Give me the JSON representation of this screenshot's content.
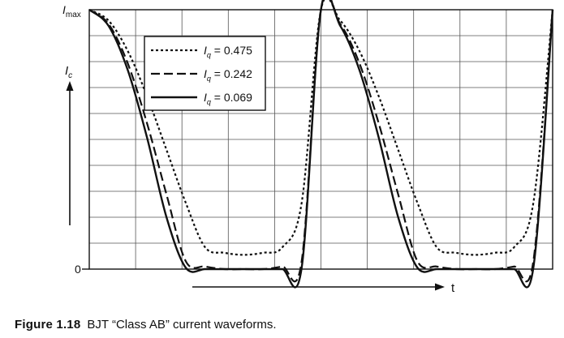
{
  "chart_data": {
    "type": "line",
    "title": "",
    "x": [
      0,
      0.0833,
      0.1667,
      0.25,
      0.3333,
      0.4167,
      0.5,
      0.5833,
      0.6667,
      0.75,
      0.8333,
      0.9167,
      1,
      1.0833,
      1.1667,
      1.25,
      1.3333,
      1.4167,
      1.5,
      1.5833,
      1.6667,
      1.75,
      1.8333,
      1.9167,
      2
    ],
    "series": [
      {
        "name": "0.475",
        "style": "dotted",
        "values": [
          1,
          0.958,
          0.84,
          0.665,
          0.46,
          0.255,
          0.084,
          0.063,
          0.055,
          0.063,
          0.084,
          0.255,
          1,
          0.958,
          0.84,
          0.665,
          0.46,
          0.255,
          0.084,
          0.063,
          0.055,
          0.063,
          0.084,
          0.255,
          1
        ]
      },
      {
        "name": "0.242",
        "style": "dashed",
        "values": [
          1,
          0.945,
          0.792,
          0.56,
          0.288,
          0.03,
          0.01,
          0,
          0,
          0,
          0.01,
          0.03,
          1,
          0.945,
          0.792,
          0.56,
          0.288,
          0.03,
          0.01,
          0,
          0,
          0,
          0.01,
          0.03,
          1
        ]
      },
      {
        "name": "0.069",
        "style": "solid",
        "values": [
          1,
          0.938,
          0.766,
          0.505,
          0.2,
          0.005,
          0,
          0,
          0,
          0,
          0,
          0.005,
          1,
          0.938,
          0.766,
          0.505,
          0.2,
          0.005,
          0,
          0,
          0,
          0,
          0,
          0.005,
          1
        ]
      }
    ],
    "legend": {
      "position": "top-left",
      "var_main": "I",
      "var_sub": "q",
      "entries": [
        "0.475",
        "0.242",
        "0.069"
      ]
    },
    "ylabel_main": "I",
    "ylabel_sub": "c",
    "ytick_top_main": "I",
    "ytick_top_sub": "max",
    "ytick_bottom": "0",
    "xlabel": "t",
    "ylim": [
      0,
      1
    ],
    "xlim": [
      0,
      2
    ],
    "grid": true,
    "grid_columns": 10,
    "grid_rows": 10
  },
  "caption": {
    "figure_label": "Figure 1.18",
    "text": "BJT “Class AB” current waveforms."
  }
}
